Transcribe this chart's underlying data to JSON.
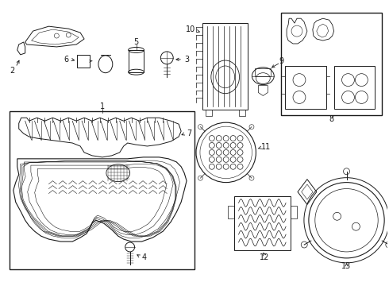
{
  "background_color": "#ffffff",
  "line_color": "#1a1a1a",
  "fig_width": 4.9,
  "fig_height": 3.6,
  "dpi": 100
}
